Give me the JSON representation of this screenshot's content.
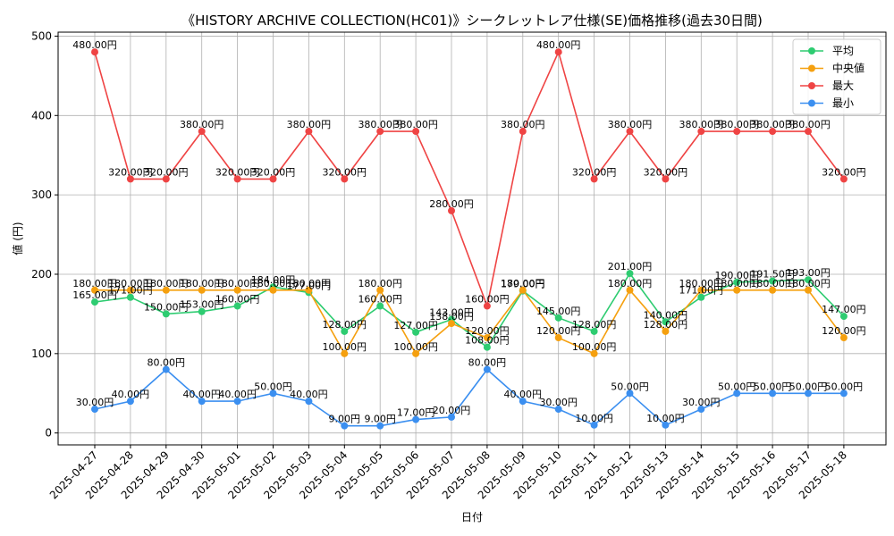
{
  "chart_data": {
    "type": "line",
    "title": "《HISTORY ARCHIVE COLLECTION(HC01)》シークレットレア仕様(SE)価格推移(過去30日間)",
    "xlabel": "日付",
    "ylabel": "値 (円)",
    "ylim": [
      -15,
      505
    ],
    "yticks": [
      0,
      100,
      200,
      300,
      400,
      500
    ],
    "grid": true,
    "legend_position": "top-right",
    "value_suffix": "円",
    "categories": [
      "2025-04-27",
      "2025-04-28",
      "2025-04-29",
      "2025-04-30",
      "2025-05-01",
      "2025-05-02",
      "2025-05-03",
      "2025-05-04",
      "2025-05-05",
      "2025-05-06",
      "2025-05-07",
      "2025-05-08",
      "2025-05-09",
      "2025-05-10",
      "2025-05-11",
      "2025-05-12",
      "2025-05-13",
      "2025-05-14",
      "2025-05-15",
      "2025-05-16",
      "2025-05-17",
      "2025-05-18"
    ],
    "series": [
      {
        "name": "平均",
        "color": "#2ecc71",
        "values": [
          165,
          171,
          150,
          153,
          160,
          184,
          177,
          128,
          160,
          127,
          143,
          108,
          179,
          145,
          128,
          201,
          140,
          171,
          190,
          191.5,
          193,
          147
        ]
      },
      {
        "name": "中央値",
        "color": "#f5a00f",
        "values": [
          180,
          180,
          180,
          180,
          180,
          180,
          180,
          100,
          180,
          100,
          138,
          120,
          180,
          120,
          100,
          180,
          128,
          180,
          180,
          180,
          180,
          120
        ]
      },
      {
        "name": "最大",
        "color": "#ef4444",
        "values": [
          480,
          320,
          320,
          380,
          320,
          320,
          380,
          320,
          380,
          380,
          280,
          160,
          380,
          480,
          320,
          380,
          320,
          380,
          380,
          380,
          380,
          320
        ]
      },
      {
        "name": "最小",
        "color": "#3b8ff0",
        "values": [
          30,
          40,
          80,
          40,
          40,
          50,
          40,
          9,
          9,
          17,
          20,
          80,
          40,
          30,
          10,
          50,
          10,
          30,
          50,
          50,
          50,
          50
        ]
      }
    ]
  }
}
